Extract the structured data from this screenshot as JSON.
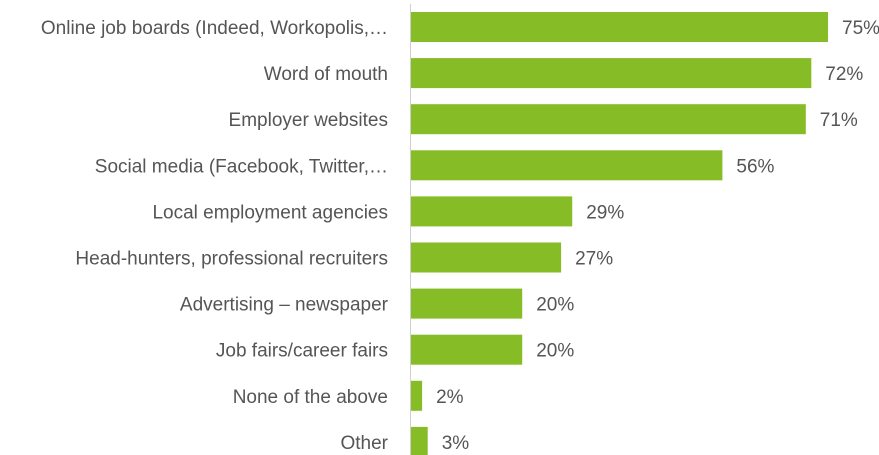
{
  "chart_data": {
    "type": "bar",
    "orientation": "horizontal",
    "title": "",
    "xlabel": "",
    "ylabel": "",
    "categories": [
      "Online job boards (Indeed, Workopolis,…",
      "Word of mouth",
      "Employer websites",
      "Social media (Facebook, Twitter,…",
      "Local employment agencies",
      "Head-hunters, professional recruiters",
      "Advertising – newspaper",
      "Job fairs/career fairs",
      "None of the above",
      "Other"
    ],
    "values": [
      75,
      72,
      71,
      56,
      29,
      27,
      20,
      20,
      2,
      3
    ],
    "value_labels": [
      "75%",
      "72%",
      "71%",
      "56%",
      "29%",
      "27%",
      "20%",
      "20%",
      "2%",
      "3%"
    ],
    "xlim": [
      0,
      75
    ],
    "bar_color": "#86bc25",
    "grid": false,
    "legend": "none"
  }
}
